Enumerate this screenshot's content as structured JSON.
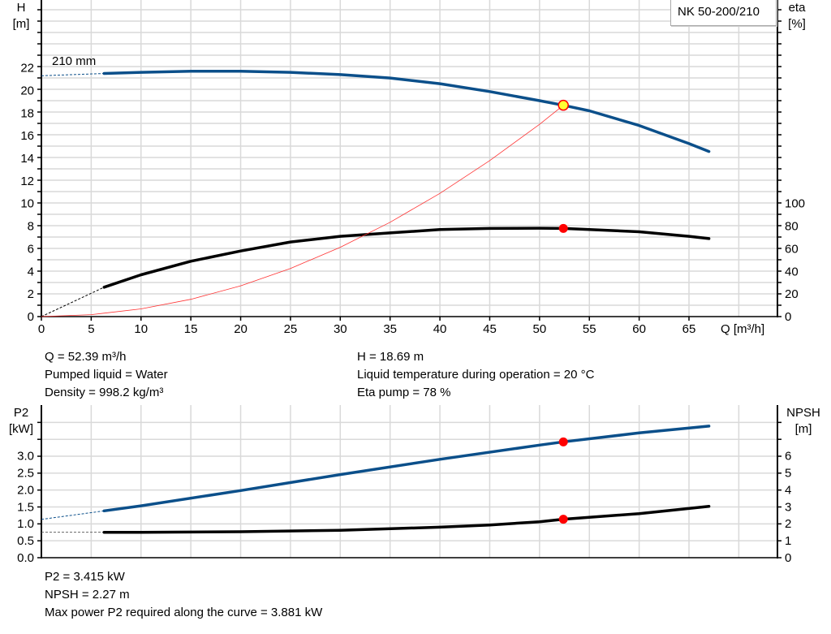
{
  "title": "NK 50-200/210",
  "colors": {
    "head": "#0b4f8a",
    "eta": "#000000",
    "system": "#ff3333",
    "op_point": "#ff0000",
    "op_point_head": "#ffff33",
    "grid": "#d9d9d9"
  },
  "chart_data": [
    {
      "type": "line",
      "name": "pump-curve",
      "xlabel": "Q [m³/h]",
      "xlim": [
        0,
        73.9
      ],
      "xticks": [
        0,
        5,
        10,
        15,
        20,
        25,
        30,
        35,
        40,
        45,
        50,
        55,
        60,
        65
      ],
      "ylabel_left": "H\n[m]",
      "ylabel_left_lines": [
        "H",
        "[m]"
      ],
      "ylim_left": [
        0,
        28
      ],
      "yticks_left": [
        0,
        2,
        4,
        6,
        8,
        10,
        12,
        14,
        16,
        18,
        20,
        22
      ],
      "ylabel_right_lines": [
        "eta",
        "[%]"
      ],
      "ylim_right": [
        0,
        280
      ],
      "yticks_right": [
        0,
        20,
        40,
        60,
        80,
        100
      ],
      "grid": true,
      "annotation": "210 mm",
      "series": [
        {
          "key": "head",
          "axis": "left",
          "dashed_x": [
            0,
            6.3
          ],
          "dashed_y": [
            21.3,
            21.5
          ],
          "x": [
            6.3,
            10,
            15,
            20,
            25,
            30,
            35,
            40,
            45,
            50,
            52.39,
            55,
            60,
            65,
            67
          ],
          "y": [
            21.5,
            21.6,
            21.7,
            21.7,
            21.6,
            21.4,
            21.1,
            20.6,
            19.9,
            19.1,
            18.69,
            18.2,
            16.9,
            15.3,
            14.6
          ]
        },
        {
          "key": "eta",
          "axis": "right",
          "dashed_x": [
            0,
            6.3
          ],
          "dashed_y": [
            0,
            26
          ],
          "x": [
            6.3,
            10,
            15,
            20,
            25,
            30,
            35,
            40,
            45,
            50,
            52.39,
            55,
            60,
            65,
            67
          ],
          "y": [
            26,
            37,
            49,
            58,
            66,
            71,
            74,
            77,
            78,
            78.2,
            78,
            77,
            75,
            71,
            69
          ]
        },
        {
          "key": "system",
          "axis": "left",
          "x": [
            0,
            5,
            10,
            15,
            20,
            25,
            30,
            35,
            40,
            45,
            50,
            52.39
          ],
          "y": [
            0,
            0.17,
            0.68,
            1.53,
            2.72,
            4.26,
            6.13,
            8.34,
            10.9,
            13.8,
            17.0,
            18.69
          ]
        }
      ],
      "operating_point": {
        "Q": 52.39,
        "H": 18.69,
        "eta": 78
      }
    },
    {
      "type": "line",
      "name": "power-npsh-curve",
      "xlim": [
        0,
        73.9
      ],
      "ylabel_left_lines": [
        "P2",
        "[kW]"
      ],
      "ylim_left": [
        0,
        4.5
      ],
      "yticks_left": [
        "0.0",
        "0.5",
        "1.0",
        "1.5",
        "2.0",
        "2.5",
        "3.0"
      ],
      "ylabel_right_lines": [
        "NPSH",
        "[m]"
      ],
      "ylim_right": [
        0,
        9
      ],
      "yticks_right": [
        0,
        1,
        2,
        3,
        4,
        5,
        6
      ],
      "grid": true,
      "series": [
        {
          "key": "p2",
          "axis": "left",
          "dashed_x": [
            0,
            6.3
          ],
          "dashed_y": [
            1.13,
            1.38
          ],
          "x": [
            6.3,
            10,
            20,
            30,
            40,
            50,
            52.39,
            60,
            67
          ],
          "y": [
            1.38,
            1.53,
            1.98,
            2.45,
            2.9,
            3.32,
            3.415,
            3.68,
            3.88
          ]
        },
        {
          "key": "npsh",
          "axis": "right",
          "dashed_x": [
            0,
            6.3
          ],
          "dashed_y": [
            1.5,
            1.5
          ],
          "x": [
            6.3,
            10,
            20,
            30,
            40,
            45,
            50,
            52.39,
            60,
            67
          ],
          "y": [
            1.5,
            1.5,
            1.53,
            1.62,
            1.8,
            1.93,
            2.12,
            2.27,
            2.6,
            3.03
          ]
        }
      ],
      "operating_point": {
        "Q": 52.39,
        "P2": 3.415,
        "NPSH": 2.27
      }
    }
  ],
  "info_top": [
    "Q = 52.39 m³/h",
    "Pumped liquid = Water",
    "Density = 998.2 kg/m³",
    "H = 18.69 m",
    "Liquid temperature during operation = 20 °C",
    "Eta pump = 78 %"
  ],
  "info_bottom": [
    "P2 = 3.415 kW",
    "NPSH = 2.27 m",
    "Max power P2 required along the curve = 3.881 kW"
  ]
}
